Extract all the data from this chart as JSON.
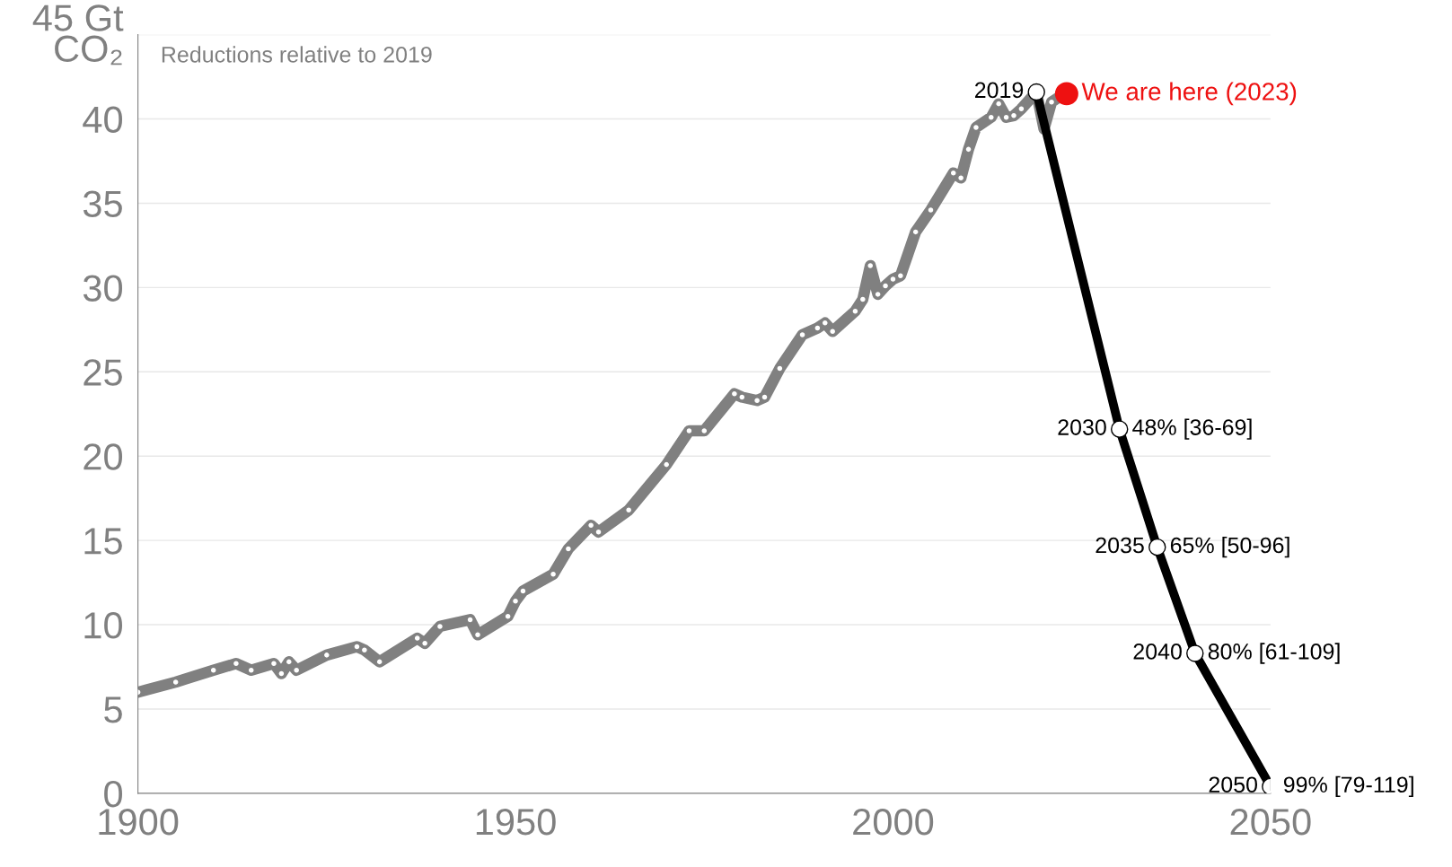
{
  "chart_data": {
    "type": "line",
    "xlim": [
      1900,
      2050
    ],
    "xticks": [
      1900,
      1950,
      2000,
      2050
    ],
    "ylim": [
      0,
      45
    ],
    "yticks": [
      0,
      5,
      10,
      15,
      20,
      25,
      30,
      35,
      40,
      {
        "value": 45,
        "label": "45 Gt\nCO₂"
      }
    ],
    "grid": "y",
    "legend": false,
    "marker": "circle",
    "series": [
      {
        "color": "#808080",
        "x": [
          1900,
          1905,
          1910,
          1913,
          1915,
          1918,
          1919,
          1920,
          1921,
          1925,
          1929,
          1930,
          1932,
          1937,
          1938,
          1940,
          1944,
          1945,
          1949,
          1950,
          1951,
          1955,
          1957,
          1960,
          1961,
          1965,
          1970,
          1973,
          1975,
          1979,
          1980,
          1982,
          1983,
          1985,
          1988,
          1990,
          1991,
          1992,
          1995,
          1996,
          1997,
          1998,
          1999,
          2000,
          2001,
          2003,
          2005,
          2008,
          2009,
          2010,
          2011,
          2013,
          2014,
          2015,
          2016,
          2017,
          2019,
          2020,
          2021,
          2022,
          2023
        ],
        "values": [
          6.0,
          6.6,
          7.3,
          7.7,
          7.3,
          7.7,
          7.1,
          7.8,
          7.3,
          8.2,
          8.7,
          8.5,
          7.8,
          9.2,
          8.9,
          9.9,
          10.3,
          9.4,
          10.5,
          11.4,
          12.0,
          13.0,
          14.5,
          15.9,
          15.5,
          16.8,
          19.5,
          21.5,
          21.5,
          23.7,
          23.5,
          23.3,
          23.5,
          25.2,
          27.2,
          27.6,
          27.9,
          27.4,
          28.6,
          29.3,
          31.3,
          29.6,
          30.1,
          30.5,
          30.7,
          33.3,
          34.6,
          36.8,
          36.5,
          38.2,
          39.5,
          40.1,
          40.9,
          40.1,
          40.2,
          40.6,
          41.6,
          39.4,
          41.0,
          41.3,
          41.5
        ]
      },
      {
        "color": "#000000",
        "x": [
          2019,
          2030,
          2035,
          2040,
          2050
        ],
        "values": [
          41.6,
          21.6,
          14.6,
          8.3,
          0.4
        ]
      },
      {
        "type": "scatter",
        "name": "We are here (2023)",
        "color": "#ee1111",
        "x": [
          2023
        ],
        "values": [
          41.5
        ]
      }
    ],
    "annotations": [
      "Reductions relative to 2019",
      {
        "text": "2030",
        "x": 2030,
        "y": 21.6
      },
      {
        "text": "48% [36-69]",
        "x": 2030,
        "y": 21.6
      },
      {
        "text": "2035",
        "x": 2035,
        "y": 14.6
      },
      {
        "text": "65% [50-96]",
        "x": 2035,
        "y": 14.6
      },
      {
        "text": "2040",
        "x": 2040,
        "y": 8.3
      },
      {
        "text": "80% [61-109]",
        "x": 2040,
        "y": 8.3
      },
      {
        "text": "2050",
        "x": 2050,
        "y": 0.4
      },
      {
        "text": "99% [79-119]",
        "x": 2050,
        "y": 0.4
      },
      {
        "text": "2019",
        "x": 2019,
        "y": 41.6
      }
    ]
  }
}
